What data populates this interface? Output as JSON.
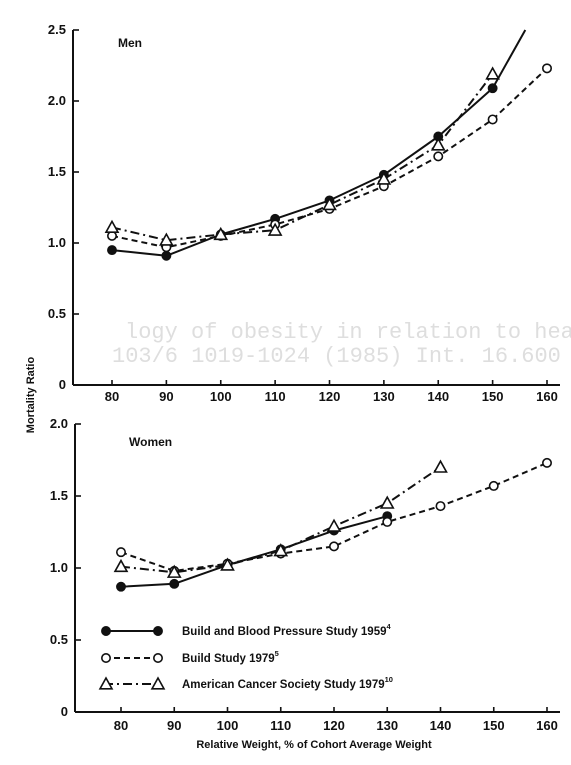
{
  "chart_data": [
    {
      "type": "line",
      "title": "Men",
      "xlabel": "",
      "ylabel": "Mortality Ratio",
      "xlim": [
        75,
        162
      ],
      "ylim": [
        0,
        2.5
      ],
      "xticks": [
        "80",
        "90",
        "100",
        "110",
        "120",
        "130",
        "140",
        "150",
        "160"
      ],
      "yticks": [
        "0",
        "0.5",
        "1.0",
        "1.5",
        "2.0",
        "2.5"
      ],
      "series": [
        {
          "name": "Build and Blood Pressure Study 1959",
          "style": "solid",
          "marker": "filled-circle",
          "x": [
            80,
            90,
            100,
            110,
            120,
            130,
            140,
            150
          ],
          "y": [
            0.95,
            0.91,
            1.06,
            1.17,
            1.3,
            1.48,
            1.75,
            2.09
          ],
          "curve_end": [
            156,
            2.5
          ]
        },
        {
          "name": "Build Study 1979",
          "style": "dashed",
          "marker": "open-circle",
          "x": [
            80,
            90,
            100,
            110,
            120,
            130,
            140,
            150,
            160
          ],
          "y": [
            1.05,
            0.97,
            1.05,
            1.13,
            1.24,
            1.4,
            1.61,
            1.87,
            2.23
          ]
        },
        {
          "name": "American Cancer Society Study 1979",
          "style": "dashdot",
          "marker": "open-triangle",
          "x": [
            80,
            90,
            100,
            110,
            120,
            130,
            140,
            150
          ],
          "y": [
            1.11,
            1.02,
            1.06,
            1.09,
            1.27,
            1.45,
            1.69,
            2.19
          ]
        }
      ]
    },
    {
      "type": "line",
      "title": "Women",
      "xlabel": "Relative Weight, % of Cohort Average Weight",
      "ylabel": "",
      "xlim": [
        75,
        162
      ],
      "ylim": [
        0,
        2.0
      ],
      "xticks": [
        "80",
        "90",
        "100",
        "110",
        "120",
        "130",
        "140",
        "150",
        "160"
      ],
      "yticks": [
        "0",
        "0.5",
        "1.0",
        "1.5",
        "2.0"
      ],
      "series": [
        {
          "name": "Build and Blood Pressure Study 1959",
          "style": "solid",
          "marker": "filled-circle",
          "x": [
            80,
            90,
            100,
            110,
            120,
            130
          ],
          "y": [
            0.87,
            0.89,
            1.02,
            1.13,
            1.26,
            1.36
          ]
        },
        {
          "name": "Build Study 1979",
          "style": "dashed",
          "marker": "open-circle",
          "x": [
            80,
            90,
            100,
            110,
            120,
            130,
            140,
            150,
            160
          ],
          "y": [
            1.11,
            0.98,
            1.03,
            1.1,
            1.15,
            1.32,
            1.43,
            1.57,
            1.73
          ]
        },
        {
          "name": "American Cancer Society Study 1979",
          "style": "dashdot",
          "marker": "open-triangle",
          "x": [
            80,
            90,
            100,
            110,
            120,
            130,
            140
          ],
          "y": [
            1.01,
            0.97,
            1.02,
            1.12,
            1.29,
            1.45,
            1.7
          ]
        }
      ]
    }
  ],
  "legend": {
    "placement": "bottom-left of lower panel",
    "entries": [
      {
        "label": "Build and Blood Pressure Study 1959",
        "sup": "4",
        "marker": "filled-circle",
        "style": "solid"
      },
      {
        "label": "Build Study 1979",
        "sup": "5",
        "marker": "open-circle",
        "style": "dashed"
      },
      {
        "label": "American Cancer Society Study 1979",
        "sup": "10",
        "marker": "open-triangle",
        "style": "dashdot"
      }
    ]
  },
  "bleed_through": {
    "line1": "logy of obesity in relation to health",
    "line2": "103/6 1019-1024 (1985) Int. 16.600"
  }
}
